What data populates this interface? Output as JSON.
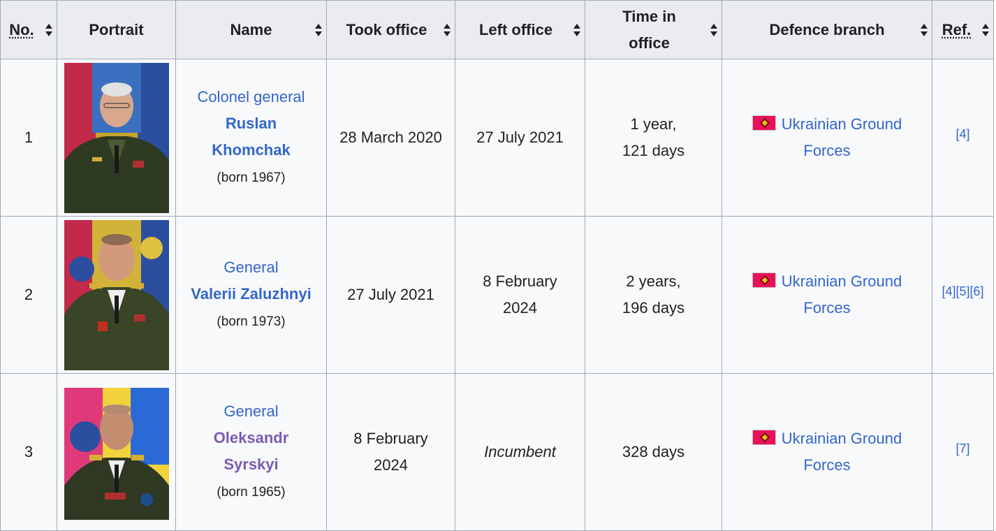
{
  "columns": [
    {
      "label": "No.",
      "abbr": true
    },
    {
      "label": "Portrait",
      "sortable": false
    },
    {
      "label": "Name"
    },
    {
      "label": "Took office"
    },
    {
      "label": "Left office"
    },
    {
      "label": "Time in office"
    },
    {
      "label": "Defence branch"
    },
    {
      "label": "Ref.",
      "abbr": true
    }
  ],
  "header": {
    "no": "No.",
    "portrait": "Portrait",
    "name": "Name",
    "took_office": "Took office",
    "left_office": "Left office",
    "time_in_office_line1": "Time in",
    "time_in_office_line2": "office",
    "defence_branch": "Defence branch",
    "ref": "Ref."
  },
  "rows": [
    {
      "no": "1",
      "rank": "Colonel general",
      "name_line1": "Ruslan",
      "name_line2": "Khomchak",
      "born": "(born 1967)",
      "took_office": "28 March 2020",
      "left_office": "27 July 2021",
      "time_line1": "1 year,",
      "time_line2": "121 days",
      "branch_line1": "Ukrainian Ground",
      "branch_line2": "Forces",
      "ref": "[4]"
    },
    {
      "no": "2",
      "rank": "General",
      "name_line1": "Valerii Zaluzhnyi",
      "born": "(born 1973)",
      "took_office": "27 July 2021",
      "left_office_line1": "8 February",
      "left_office_line2": "2024",
      "time_line1": "2 years,",
      "time_line2": "196 days",
      "branch_line1": "Ukrainian Ground",
      "branch_line2": "Forces",
      "ref": "[4][5][6]"
    },
    {
      "no": "3",
      "rank": "General",
      "name_line1": "Oleksandr",
      "name_line2": "Syrskyi",
      "born": "(born 1965)",
      "took_office_line1": "8 February",
      "took_office_line2": "2024",
      "left_office": "Incumbent",
      "time": "328 days",
      "branch_line1": "Ukrainian Ground",
      "branch_line2": "Forces",
      "ref": "[7]"
    }
  ],
  "colors": {
    "header_bg": "#eaecf0",
    "cell_bg": "#f8f9fa",
    "border": "#a2a9b1",
    "link": "#3366cc",
    "visited_link": "#795cb2",
    "flag": "#e8115a"
  },
  "icons": {
    "sort": "sort-arrows-icon",
    "flag": "ukrainian-ground-forces-flag-icon"
  }
}
